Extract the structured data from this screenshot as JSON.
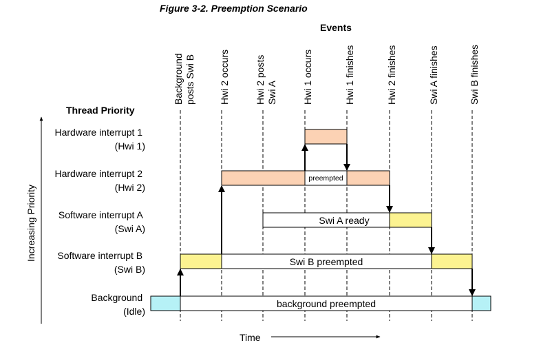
{
  "title": "Figure 3-2.  Preemption Scenario",
  "events_header": "Events",
  "thread_priority_header": "Thread Priority",
  "y_axis_label": "Increasing Priority",
  "x_axis_label": "Time",
  "events": [
    {
      "lines": [
        "Background",
        "posts Swi B"
      ]
    },
    {
      "lines": [
        "Hwi 2 occurs"
      ]
    },
    {
      "lines": [
        "Hwi 2 posts",
        "Swi A"
      ]
    },
    {
      "lines": [
        "Hwi 1 occurs"
      ]
    },
    {
      "lines": [
        "Hwi 1 finishes"
      ]
    },
    {
      "lines": [
        "Hwi 2 finishes"
      ]
    },
    {
      "lines": [
        "Swi A finishes"
      ]
    },
    {
      "lines": [
        "Swi B finishes"
      ]
    }
  ],
  "threads": [
    {
      "name": "Hardware interrupt 1",
      "abbr": "(Hwi 1)"
    },
    {
      "name": "Hardware interrupt 2",
      "abbr": "(Hwi 2)"
    },
    {
      "name": "Software interrupt A",
      "abbr": "(Swi A)"
    },
    {
      "name": "Software interrupt B",
      "abbr": "(Swi B)"
    },
    {
      "name": "Background",
      "abbr": "(Idle)"
    }
  ],
  "bar_labels": {
    "hwi2_preempted": "preempted",
    "swia_ready": "Swi A ready",
    "swib_preempted": "Swi B preempted",
    "background_preempted": "background preempted"
  },
  "colors": {
    "hwi": "#fcd2b4",
    "swi": "#fcf391",
    "idle": "#b6f1f6",
    "preempted": "#ffffff"
  }
}
